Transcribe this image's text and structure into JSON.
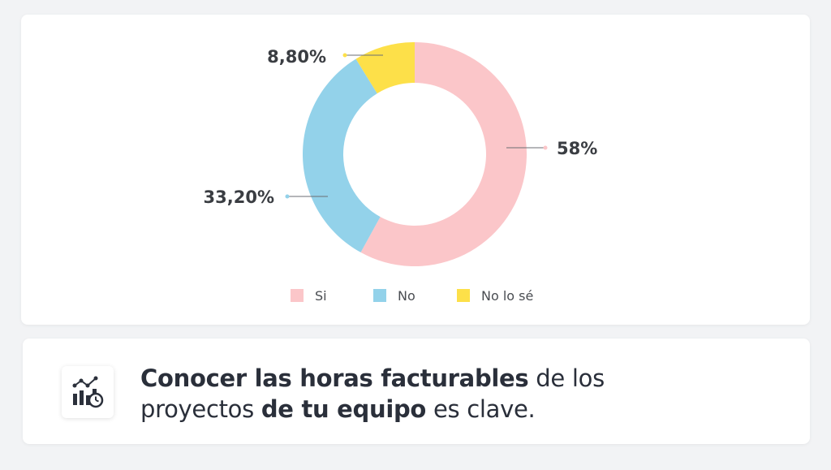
{
  "chart_data": {
    "type": "donut",
    "title": "",
    "series": [
      {
        "name": "Si",
        "value": 58,
        "label": "58%",
        "color": "#fbc6c9"
      },
      {
        "name": "No",
        "value": 33.2,
        "label": "33,20%",
        "color": "#93d2ea"
      },
      {
        "name": "No lo sé",
        "value": 8.8,
        "label": "8,80%",
        "color": "#fde049"
      }
    ],
    "legend": {
      "placement": "bottom"
    },
    "start_angle": "top",
    "direction": "clockwise"
  },
  "headline": {
    "part1": "Conocer las horas facturables",
    "part2": " de los proyectos ",
    "part3": "de tu equipo",
    "part4": " es clave."
  },
  "icon": "analytics-clock-icon"
}
